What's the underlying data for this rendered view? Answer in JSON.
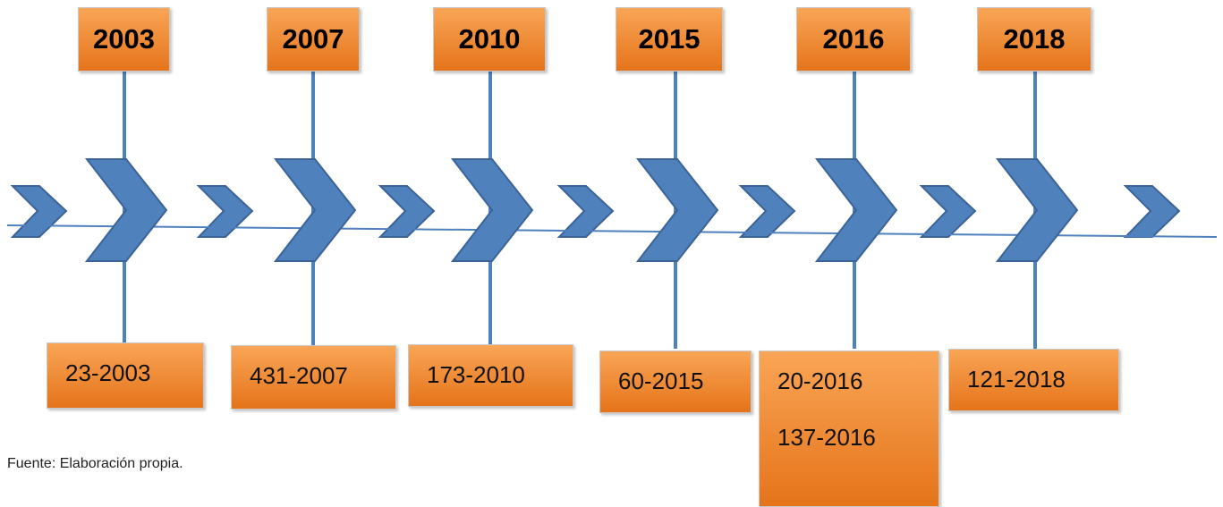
{
  "timeline": {
    "events": [
      {
        "year": "2003",
        "items": [
          "23-2003"
        ]
      },
      {
        "year": "2007",
        "items": [
          "431-2007"
        ]
      },
      {
        "year": "2010",
        "items": [
          "173-2010"
        ]
      },
      {
        "year": "2015",
        "items": [
          "60-2015"
        ]
      },
      {
        "year": "2016",
        "items": [
          "20-2016",
          "137-2016"
        ]
      },
      {
        "year": "2018",
        "items": [
          "121-2018"
        ]
      }
    ]
  },
  "source": "Fuente: Elaboración propia."
}
